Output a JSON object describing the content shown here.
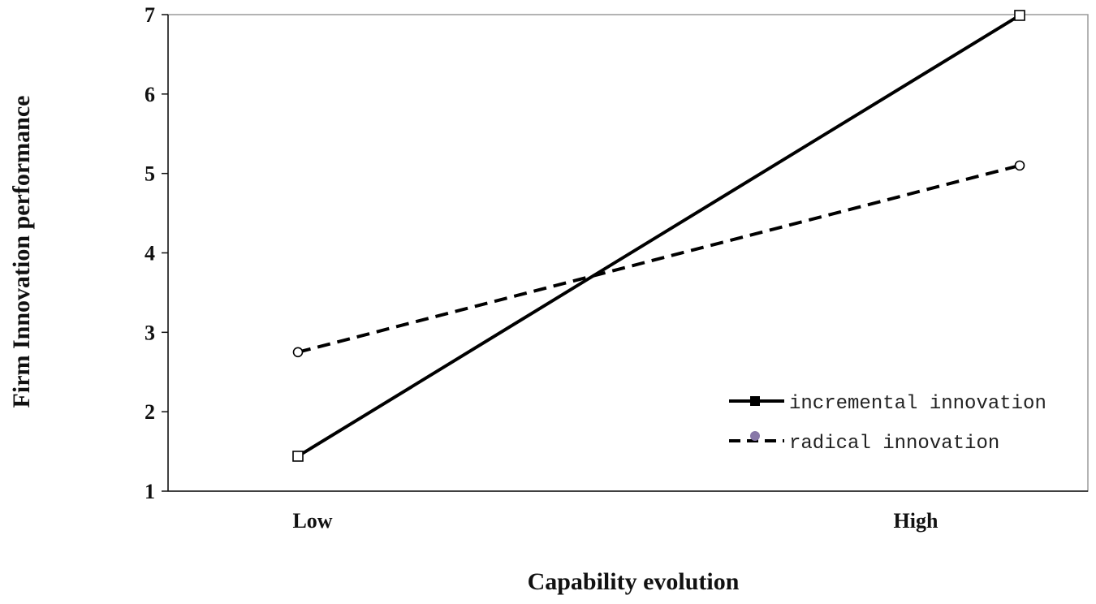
{
  "chart_data": {
    "type": "line",
    "categories": [
      "Low",
      "High"
    ],
    "xlabel": "Capability evolution",
    "ylabel": "Firm Innovation  performance",
    "ylim": [
      1,
      7
    ],
    "yticks": [
      "1",
      "2",
      "3",
      "4",
      "5",
      "6",
      "7"
    ],
    "grid": false,
    "legend_position": "bottom-right",
    "series": [
      {
        "name": "incremental innovation",
        "values": [
          1.44,
          6.99
        ],
        "line_style": "solid",
        "marker": "square",
        "color": "#000000"
      },
      {
        "name": "radical innovation",
        "values": [
          2.75,
          5.1
        ],
        "line_style": "dashed",
        "marker": "circle",
        "color": "#000000",
        "legend_marker_color": "#8878a8"
      }
    ]
  }
}
